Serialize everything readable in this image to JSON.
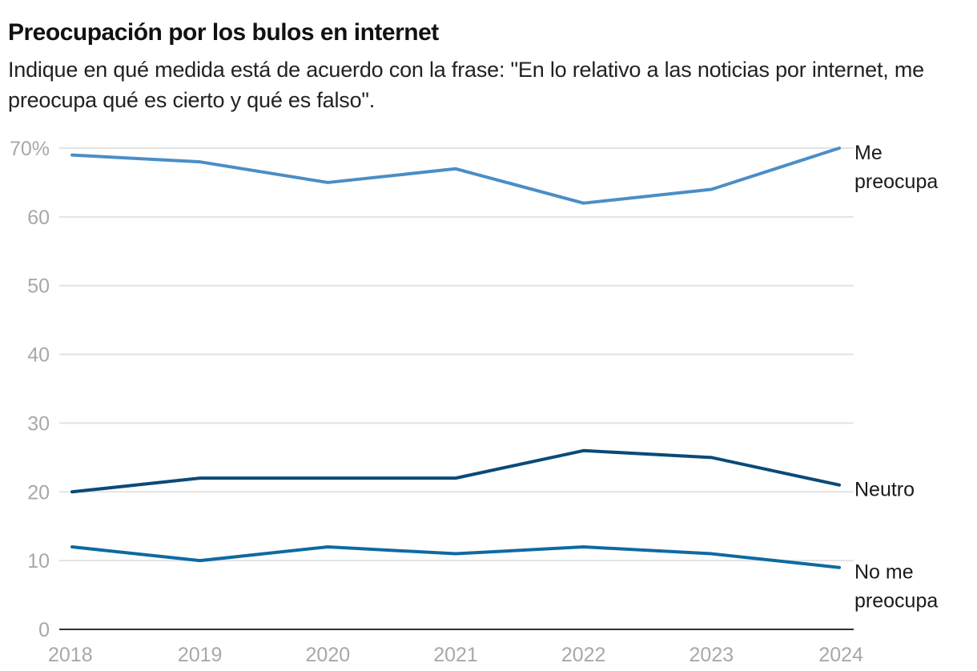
{
  "chart_data": {
    "type": "line",
    "title": "Preocupación por los bulos en internet",
    "subtitle": "Indique en qué medida está de acuerdo con la frase: \"En lo relativo a las noticias por internet, me preocupa qué es cierto y qué es falso\".",
    "xlabel": "",
    "ylabel": "",
    "x": [
      "2018",
      "2019",
      "2020",
      "2021",
      "2022",
      "2023",
      "2024"
    ],
    "ylim": [
      0,
      70
    ],
    "yticks": [
      0,
      10,
      20,
      30,
      40,
      50,
      60,
      70
    ],
    "ytick_labels": [
      "0",
      "10",
      "20",
      "30",
      "40",
      "50",
      "60",
      "70%"
    ],
    "grid": true,
    "legend": "direct labels at right end of lines",
    "series": [
      {
        "name": "Me preocupa",
        "label_lines": [
          "Me",
          "preocupa"
        ],
        "color": "#4a8ec6",
        "values": [
          69,
          68,
          65,
          67,
          62,
          64,
          70
        ]
      },
      {
        "name": "Neutro",
        "label_lines": [
          "Neutro"
        ],
        "color": "#0b4a78",
        "values": [
          20,
          22,
          22,
          22,
          26,
          25,
          21
        ]
      },
      {
        "name": "No me preocupa",
        "label_lines": [
          "No me",
          "preocupa"
        ],
        "color": "#0e6aa0",
        "values": [
          12,
          10,
          12,
          11,
          12,
          11,
          9
        ]
      }
    ]
  }
}
